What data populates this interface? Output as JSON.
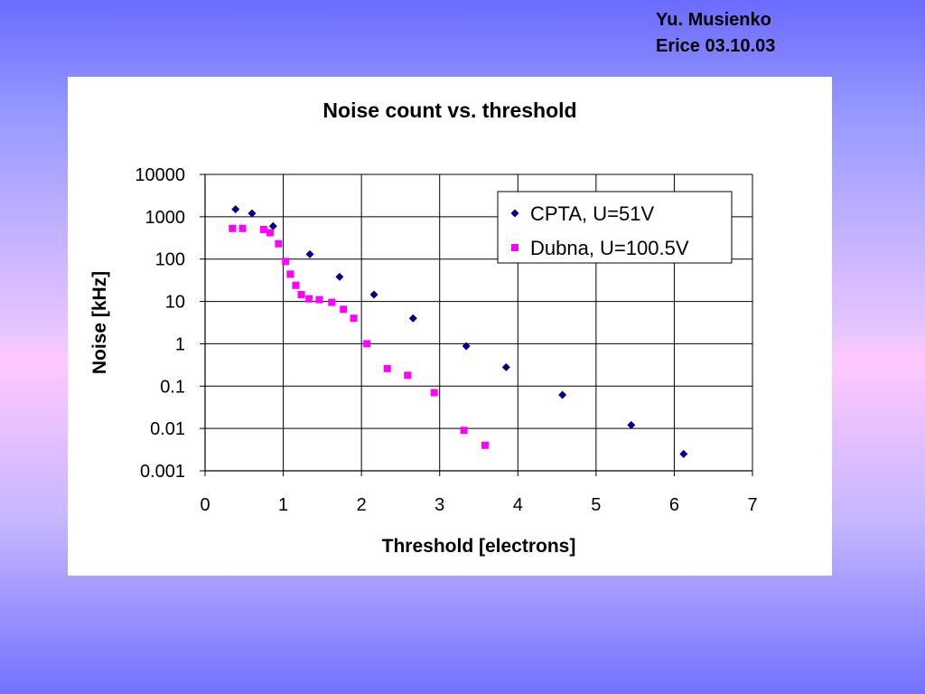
{
  "header": {
    "author": "Yu. Musienko",
    "venue_date": "Erice 03.10.03"
  },
  "chart_data": {
    "type": "scatter",
    "title": "Noise count vs. threshold",
    "xlabel": "Threshold [electrons]",
    "ylabel": "Noise [kHz]",
    "xlim": [
      0,
      7
    ],
    "ylim": [
      0.001,
      10000
    ],
    "yscale": "log",
    "x_ticks": [
      "0",
      "1",
      "2",
      "3",
      "4",
      "5",
      "6",
      "7"
    ],
    "y_ticks": [
      "10000",
      "1000",
      "100",
      "10",
      "1",
      "0.1",
      "0.01",
      "0.001"
    ],
    "grid": true,
    "legend_position": "top-right",
    "series": [
      {
        "name": "CPTA, U=51V",
        "color": "#000080",
        "marker": "diamond",
        "points": [
          [
            0.39,
            1500
          ],
          [
            0.6,
            1200
          ],
          [
            0.87,
            600
          ],
          [
            1.34,
            130
          ],
          [
            1.72,
            38
          ],
          [
            2.16,
            14.5
          ],
          [
            2.66,
            4.0
          ],
          [
            3.34,
            0.88
          ],
          [
            3.85,
            0.28
          ],
          [
            4.57,
            0.062
          ],
          [
            5.45,
            0.012
          ],
          [
            6.12,
            0.0025
          ]
        ]
      },
      {
        "name": "Dubna, U=100.5V",
        "color": "#ff00ff",
        "marker": "square",
        "points": [
          [
            0.35,
            530
          ],
          [
            0.48,
            530
          ],
          [
            0.75,
            500
          ],
          [
            0.83,
            420
          ],
          [
            0.94,
            230
          ],
          [
            1.03,
            88
          ],
          [
            1.09,
            44
          ],
          [
            1.16,
            24
          ],
          [
            1.23,
            14.5
          ],
          [
            1.33,
            11.5
          ],
          [
            1.46,
            11
          ],
          [
            1.62,
            9.5
          ],
          [
            1.77,
            6.5
          ],
          [
            1.9,
            4.0
          ],
          [
            2.07,
            1.0
          ],
          [
            2.33,
            0.26
          ],
          [
            2.59,
            0.18
          ],
          [
            2.93,
            0.07
          ],
          [
            3.31,
            0.009
          ],
          [
            3.58,
            0.004
          ]
        ]
      }
    ]
  }
}
